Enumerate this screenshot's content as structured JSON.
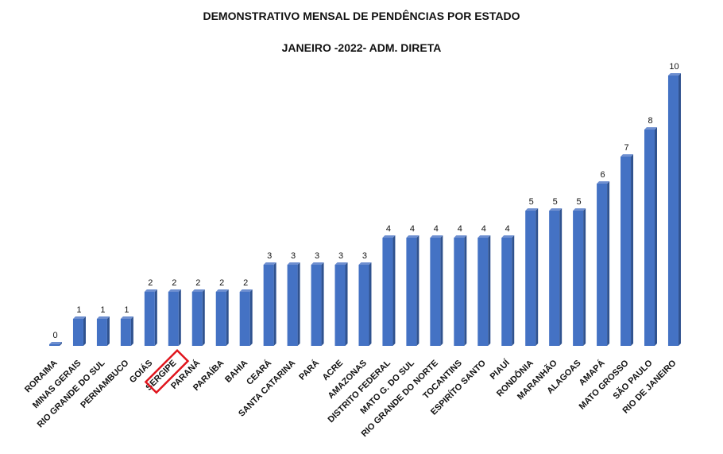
{
  "chart_data": {
    "type": "bar",
    "title": "DEMONSTRATIVO MENSAL DE PENDÊNCIAS POR ESTADO",
    "subtitle": "JANEIRO -2022- ADM. DIRETA",
    "categories": [
      "RORAIMA",
      "MINAS GERAIS",
      "RIO GRANDE DO SUL",
      "PERNAMBUCO",
      "GOIÁS",
      "SERGIPE",
      "PARANÁ",
      "PARAÍBA",
      "BAHIA",
      "CEARÁ",
      "SANTA CATARINA",
      "PARÁ",
      "ACRE",
      "AMAZONAS",
      "DISTRITO FEDERAL",
      "MATO G. DO SUL",
      "RIO GRANDE DO NORTE",
      "TOCANTINS",
      "ESPIRÍTO SANTO",
      "PIAUÍ",
      "RONDÔNIA",
      "MARANHÃO",
      "ALAGOAS",
      "AMAPÁ",
      "MATO GROSSO",
      "SÃO PAULO",
      "RIO DE JANEIRO"
    ],
    "values": [
      0,
      1,
      1,
      1,
      2,
      2,
      2,
      2,
      2,
      3,
      3,
      3,
      3,
      3,
      4,
      4,
      4,
      4,
      4,
      4,
      5,
      5,
      5,
      6,
      7,
      8,
      10
    ],
    "ylim": [
      0,
      10
    ],
    "grid": false,
    "legend": "none",
    "highlighted_category": "SERGIPE",
    "colors": {
      "bar_front": "#4472C4",
      "bar_side": "#2F528F",
      "bar_top": "#6E8FD0",
      "highlight_box": "#E0141C",
      "text": "#111111"
    }
  }
}
